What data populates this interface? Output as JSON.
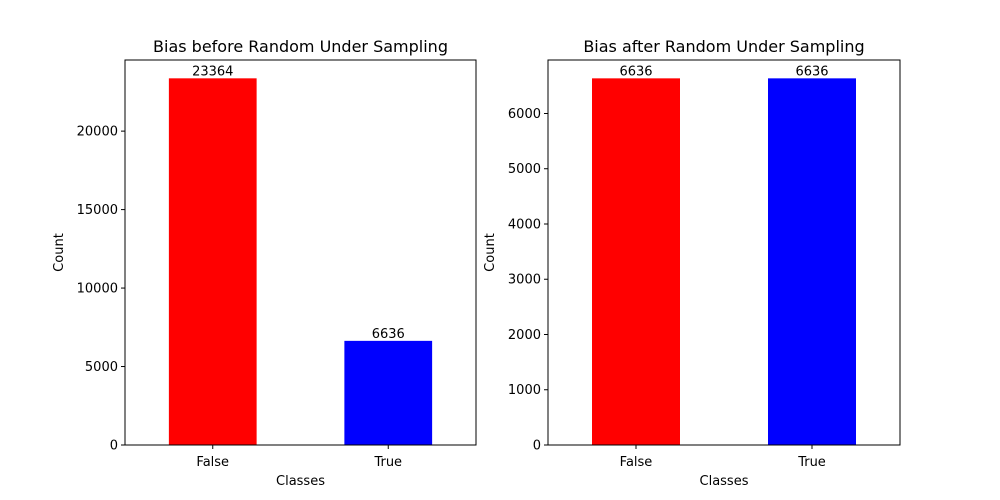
{
  "chart_data": [
    {
      "type": "bar",
      "title": "Bias before Random Under Sampling",
      "xlabel": "Classes",
      "ylabel": "Count",
      "categories": [
        "False",
        "True"
      ],
      "values": [
        23364,
        6636
      ],
      "value_labels": [
        "23364",
        "6636"
      ],
      "colors": [
        "#ff0000",
        "#0000ff"
      ],
      "ylim": [
        0,
        24532
      ],
      "yticks": [
        0,
        5000,
        10000,
        15000,
        20000
      ],
      "ytick_labels": [
        "0",
        "5000",
        "10000",
        "15000",
        "20000"
      ],
      "grid": false
    },
    {
      "type": "bar",
      "title": "Bias after Random Under Sampling",
      "xlabel": "Classes",
      "ylabel": "Count",
      "categories": [
        "False",
        "True"
      ],
      "values": [
        6636,
        6636
      ],
      "value_labels": [
        "6636",
        "6636"
      ],
      "colors": [
        "#ff0000",
        "#0000ff"
      ],
      "ylim": [
        0,
        6968
      ],
      "yticks": [
        0,
        1000,
        2000,
        3000,
        4000,
        5000,
        6000
      ],
      "ytick_labels": [
        "0",
        "1000",
        "2000",
        "3000",
        "4000",
        "5000",
        "6000"
      ],
      "grid": false
    }
  ]
}
